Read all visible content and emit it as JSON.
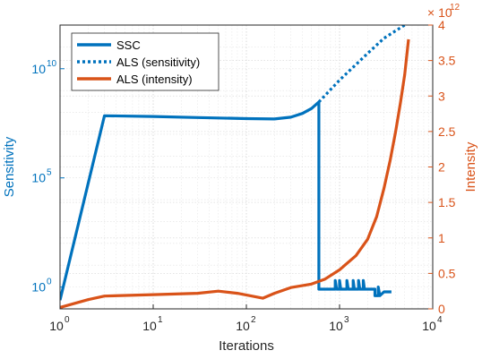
{
  "chart_data": {
    "type": "line",
    "xlabel": "Iterations",
    "ylabel_left": "Sensitivity",
    "ylabel_right": "Intensity",
    "x_scale": "log",
    "x_ticks": [
      "10",
      "10",
      "10",
      "10",
      "10"
    ],
    "x_tick_exponents": [
      "0",
      "1",
      "2",
      "3",
      "4"
    ],
    "x_lim": [
      1,
      10000
    ],
    "left_y_scale": "log",
    "left_y_lim": [
      0.1,
      1000000000000.0
    ],
    "left_y_ticks": [
      "10",
      "10",
      "10"
    ],
    "left_y_tick_exponents": [
      "0",
      "5",
      "10"
    ],
    "left_y_tick_values": [
      1,
      100000,
      10000000000
    ],
    "right_y_scale": "linear",
    "right_y_lim": [
      0,
      4
    ],
    "right_y_ticks": [
      "0",
      "0.5",
      "1",
      "1.5",
      "2",
      "2.5",
      "3",
      "3.5",
      "4"
    ],
    "right_y_multiplier": "× 10",
    "right_y_multiplier_exponent": "12",
    "grid": true,
    "legend_position": "top-left",
    "series": [
      {
        "name": "SSC",
        "axis": "left",
        "style": "solid",
        "color": "#0072BD",
        "x": [
          1,
          3,
          10,
          30,
          100,
          200,
          300,
          400,
          500,
          600,
          600,
          620,
          700,
          800,
          900,
          900,
          930,
          1000,
          1000,
          1030,
          1200,
          1200,
          1240,
          1400,
          1400,
          1440,
          1600,
          1600,
          1650,
          1800,
          1800,
          1850,
          2200,
          2300,
          2400,
          2400,
          2500,
          2600,
          2600,
          2700,
          3000,
          3600
        ],
        "y": [
          0.25,
          70000000,
          65000000,
          58000000,
          52000000,
          50000000,
          60000000,
          90000000,
          150000000,
          300000000,
          0.8,
          0.8,
          0.8,
          0.8,
          0.8,
          2.0,
          0.8,
          0.8,
          2.0,
          0.8,
          0.8,
          2.0,
          0.8,
          0.8,
          2.0,
          0.8,
          0.8,
          2.0,
          0.8,
          0.8,
          2.0,
          0.8,
          0.8,
          0.8,
          0.8,
          0.4,
          0.4,
          0.4,
          1.0,
          0.4,
          0.6,
          0.6
        ]
      },
      {
        "name": "ALS (sensitivity)",
        "axis": "left",
        "style": "dotted",
        "color": "#0072BD",
        "x": [
          600,
          1000,
          2000,
          3000,
          5000
        ],
        "y": [
          300000000,
          3000000000,
          50000000000,
          250000000000,
          1000000000000
        ]
      },
      {
        "name": "ALS (intensity)",
        "axis": "right",
        "style": "solid",
        "color": "#D95319",
        "x": [
          1,
          2,
          3,
          10,
          30,
          50,
          80,
          150,
          200,
          300,
          500,
          700,
          1000,
          1500,
          2000,
          2500,
          3000,
          3500,
          4000,
          4500,
          5000,
          5500
        ],
        "y": [
          0.02,
          0.13,
          0.18,
          0.2,
          0.22,
          0.25,
          0.22,
          0.15,
          0.22,
          0.3,
          0.35,
          0.42,
          0.55,
          0.75,
          0.98,
          1.3,
          1.7,
          2.1,
          2.5,
          2.9,
          3.3,
          3.8
        ]
      }
    ]
  }
}
